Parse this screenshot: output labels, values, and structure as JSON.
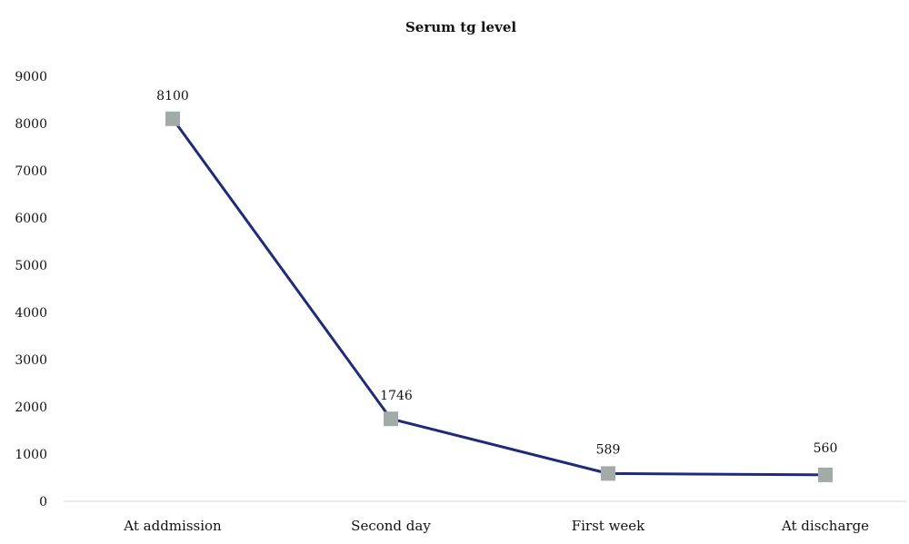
{
  "chart_data": {
    "type": "line",
    "title": "Serum tg level",
    "xlabel": "",
    "ylabel": "",
    "categories": [
      "At addmission",
      "Second day",
      "First week",
      "At discharge"
    ],
    "series": [
      {
        "values": [
          8100,
          1746,
          589,
          560
        ],
        "data_labels": [
          "8100",
          "1746",
          "589",
          "560"
        ]
      }
    ],
    "ylim": [
      0,
      9000
    ],
    "yticks": [
      "0",
      "1000",
      "2000",
      "3000",
      "4000",
      "5000",
      "6000",
      "7000",
      "8000",
      "9000"
    ],
    "grid": false,
    "legend": "none",
    "colors": {
      "line": "#1f2b7a",
      "marker": "#a3aba9",
      "axis": "#d9d9d9"
    }
  }
}
